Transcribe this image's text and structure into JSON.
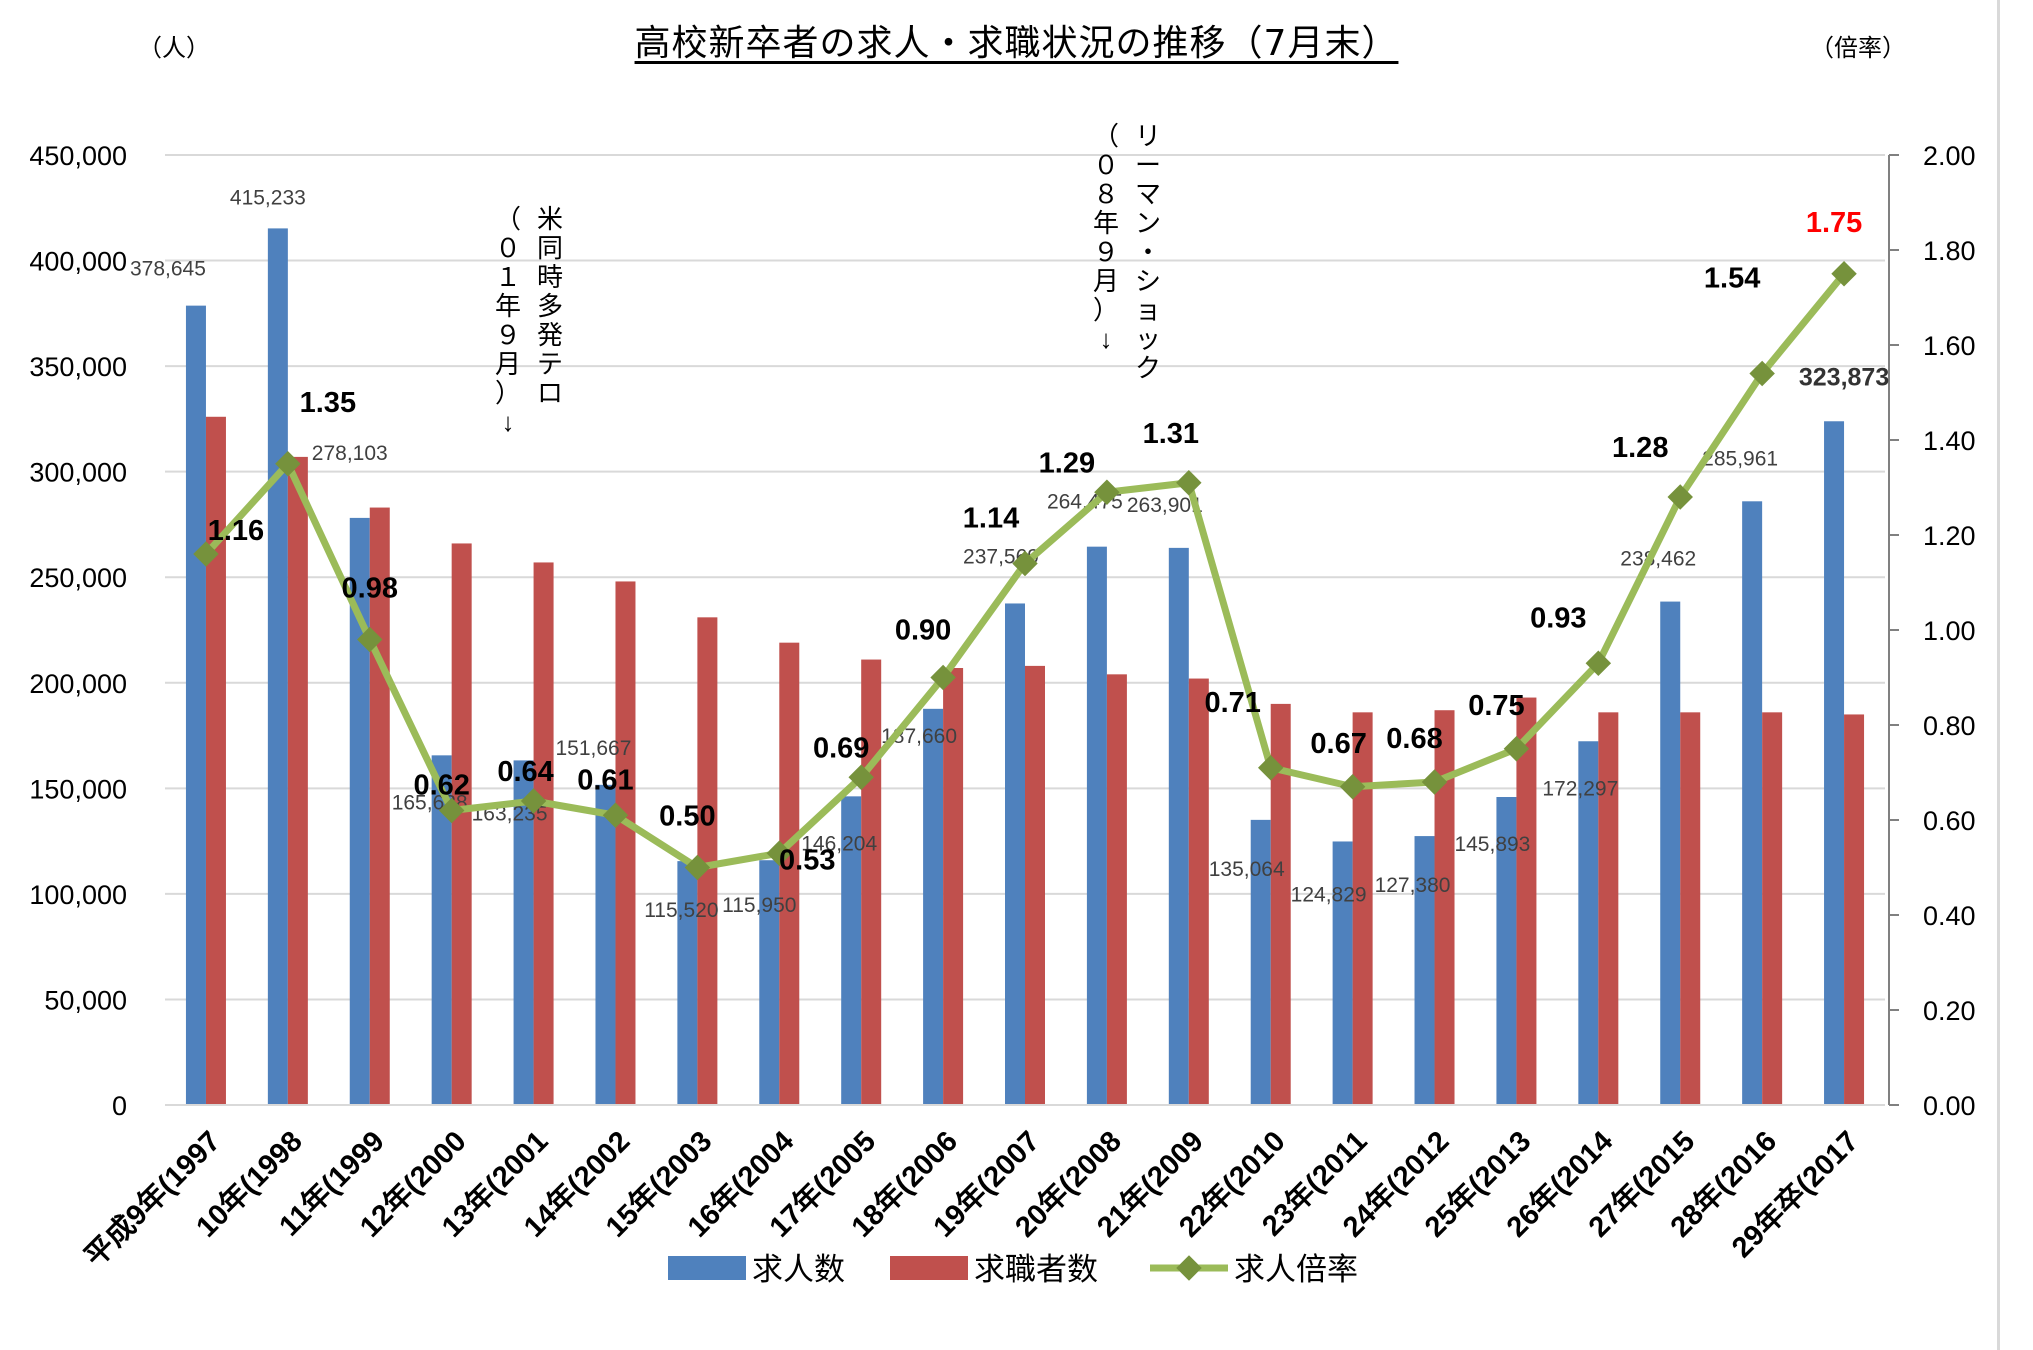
{
  "chart_data": {
    "type": "bar",
    "title": "高校新卒者の求人・求職状況の推移（7月末）",
    "y_left_unit": "（人）",
    "y_right_unit": "（倍率）",
    "ylim": [
      0,
      450000
    ],
    "y2lim": [
      0,
      2.0
    ],
    "y_ticks": [
      "450,000",
      "400,000",
      "350,000",
      "300,000",
      "250,000",
      "200,000",
      "150,000",
      "100,000",
      "50,000",
      "0"
    ],
    "y2_ticks": [
      "2.00",
      "1.80",
      "1.60",
      "1.40",
      "1.20",
      "1.00",
      "0.80",
      "0.60",
      "0.40",
      "0.20",
      "0.00"
    ],
    "categories": [
      "平成9年(1997",
      "10年(1998",
      "11年(1999",
      "12年(2000",
      "13年(2001",
      "14年(2002",
      "15年(2003",
      "16年(2004",
      "17年(2005",
      "18年(2006",
      "19年(2007",
      "20年(2008",
      "21年(2009",
      "22年(2010",
      "23年(2011",
      "24年(2012",
      "25年(2013",
      "26年(2014",
      "27年(2015",
      "28年(2016",
      "29年卒(2017"
    ],
    "series": [
      {
        "name": "求人数",
        "color": "#4f81bd",
        "values": [
          378645,
          415233,
          278103,
          165628,
          163235,
          151667,
          115520,
          115950,
          146204,
          187660,
          237569,
          264475,
          263901,
          135064,
          124829,
          127380,
          145893,
          172297,
          238462,
          285961,
          323873
        ],
        "labels": [
          "378,645",
          "415,233",
          "278,103",
          "165,628",
          "163,235",
          "151,667",
          "115,520",
          "115,950",
          "146,204",
          "187,660",
          "237,569",
          "264,475",
          "263,901",
          "135,064",
          "124,829",
          "127,380",
          "145,893",
          "172,297",
          "238,462",
          "285,961",
          "323,873"
        ]
      },
      {
        "name": "求職者数",
        "color": "#c0504d",
        "values": [
          326000,
          307000,
          283000,
          266000,
          257000,
          248000,
          231000,
          219000,
          211000,
          207000,
          208000,
          204000,
          202000,
          190000,
          186000,
          187000,
          193000,
          186000,
          186000,
          186000,
          185000
        ]
      },
      {
        "name": "求人倍率",
        "color": "#9bbb59",
        "axis": "right",
        "values": [
          1.16,
          1.35,
          0.98,
          0.62,
          0.64,
          0.61,
          0.5,
          0.53,
          0.69,
          0.9,
          1.14,
          1.29,
          1.31,
          0.71,
          0.67,
          0.68,
          0.75,
          0.93,
          1.28,
          1.54,
          1.75
        ],
        "labels": [
          "1.16",
          "1.35",
          "0.98",
          "0.62",
          "0.64",
          "0.61",
          "0.50",
          "0.53",
          "0.69",
          "0.90",
          "1.14",
          "1.29",
          "1.31",
          "0.71",
          "0.67",
          "0.68",
          "0.75",
          "0.93",
          "1.28",
          "1.54",
          "1.75"
        ],
        "highlight_color": "#ff0000"
      }
    ],
    "annotations": [
      {
        "lines": [
          "米同時多発テロ",
          "（０１年９月）↓"
        ]
      },
      {
        "lines": [
          "リーマン・ショック",
          "（０８年９月）↓"
        ]
      }
    ],
    "legend_position": "bottom"
  }
}
